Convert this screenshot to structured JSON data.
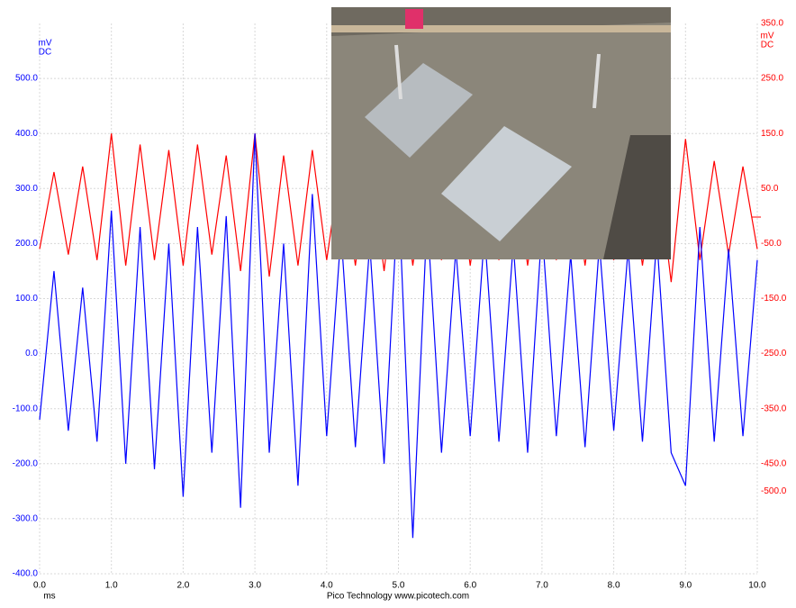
{
  "chart_data": {
    "type": "line",
    "footer": "Pico Technology   www.picotech.com",
    "xlabel": "ms",
    "ylabel_lines": [
      "mV",
      "DC"
    ],
    "y2label_lines": [
      "mV",
      "DC"
    ],
    "x": [
      0,
      0.2,
      0.4,
      0.6,
      0.8,
      1,
      1.2,
      1.4,
      1.6,
      1.8,
      2,
      2.2,
      2.4,
      2.6,
      2.8,
      3,
      3.2,
      3.4,
      3.6,
      3.8,
      4,
      4.2,
      4.4,
      4.6,
      4.8,
      5,
      5.2,
      5.4,
      5.6,
      5.8,
      6,
      6.2,
      6.4,
      6.6,
      6.8,
      7,
      7.2,
      7.4,
      7.6,
      7.8,
      8,
      8.2,
      8.4,
      8.6,
      8.8,
      9,
      9.2,
      9.4,
      9.6,
      9.8,
      10
    ],
    "series": [
      {
        "color": "#ff0000",
        "axis": "y2",
        "values": [
          -60,
          80,
          -70,
          90,
          -80,
          150,
          -90,
          130,
          -80,
          120,
          -90,
          130,
          -70,
          110,
          -100,
          150,
          -110,
          110,
          -90,
          120,
          -80,
          100,
          -90,
          110,
          -100,
          120,
          -90,
          100,
          -80,
          110,
          -90,
          100,
          -80,
          110,
          -90,
          100,
          -80,
          110,
          -90,
          100,
          -80,
          110,
          -90,
          100,
          -120,
          140,
          -80,
          100,
          -70,
          90,
          -60
        ]
      },
      {
        "color": "#0000ff",
        "values": [
          -120,
          150,
          -140,
          120,
          -160,
          260,
          -200,
          230,
          -210,
          200,
          -260,
          230,
          -180,
          250,
          -280,
          400,
          -180,
          200,
          -240,
          290,
          -150,
          220,
          -170,
          200,
          -200,
          300,
          -335,
          250,
          -180,
          190,
          -150,
          220,
          -160,
          200,
          -180,
          230,
          -150,
          180,
          -170,
          200,
          -140,
          190,
          -160,
          210,
          -180,
          -240,
          230,
          -160,
          190,
          -150,
          170
        ]
      }
    ],
    "xlim": [
      0,
      10
    ],
    "xticks": [
      {
        "value": 0,
        "label": "0.0"
      },
      {
        "value": 1,
        "label": "1.0"
      },
      {
        "value": 2,
        "label": "2.0"
      },
      {
        "value": 3,
        "label": "3.0"
      },
      {
        "value": 4,
        "label": "4.0"
      },
      {
        "value": 5,
        "label": "5.0"
      },
      {
        "value": 6,
        "label": "6.0"
      },
      {
        "value": 7,
        "label": "7.0"
      },
      {
        "value": 8,
        "label": "8.0"
      },
      {
        "value": 9,
        "label": "9.0"
      },
      {
        "value": 10,
        "label": "10.0"
      }
    ],
    "ylim": [
      -400,
      600
    ],
    "yticks": [
      {
        "value": 500,
        "label": "500.0"
      },
      {
        "value": 400,
        "label": "400.0"
      },
      {
        "value": 300,
        "label": "300.0"
      },
      {
        "value": 200,
        "label": "200.0"
      },
      {
        "value": 100,
        "label": "100.0"
      },
      {
        "value": 0,
        "label": "0.0"
      },
      {
        "value": -100,
        "label": "-100.0"
      },
      {
        "value": -200,
        "label": "-200.0"
      },
      {
        "value": -300,
        "label": "-300.0"
      },
      {
        "value": -400,
        "label": "-400.0"
      }
    ],
    "y2lim": [
      -650,
      350
    ],
    "y2ticks": [
      {
        "value": 350,
        "label": "350.0"
      },
      {
        "value": 250,
        "label": "250.0"
      },
      {
        "value": 150,
        "label": "150.0"
      },
      {
        "value": 50,
        "label": "50.0"
      },
      {
        "value": -50,
        "label": "-50.0"
      },
      {
        "value": -150,
        "label": "-150.0"
      },
      {
        "value": -250,
        "label": "-250.0"
      },
      {
        "value": -350,
        "label": "-350.0"
      },
      {
        "value": -450,
        "label": "-450.0"
      },
      {
        "value": -500,
        "label": "-500.0"
      }
    ],
    "grid": true
  }
}
